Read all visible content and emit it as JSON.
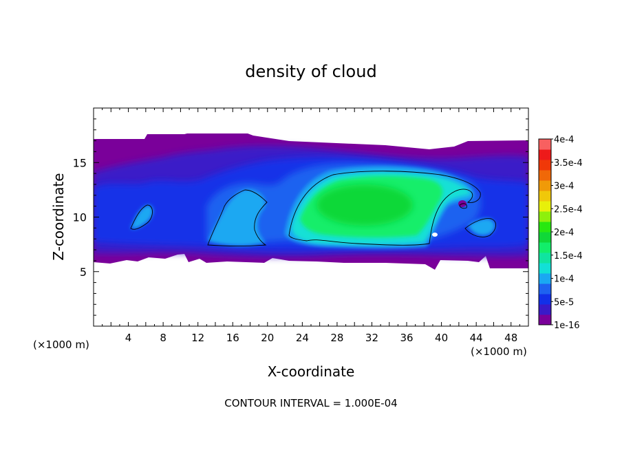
{
  "chart_data": {
    "type": "heatmap",
    "title": "density of cloud",
    "xlabel": "X-coordinate",
    "ylabel": "Z-coordinate",
    "x_unit": "(×1000 m)",
    "z_unit": "(×1000 m)",
    "xlim": [
      0,
      50
    ],
    "ylim": [
      0,
      20
    ],
    "x_ticks": [
      4,
      8,
      12,
      16,
      20,
      24,
      28,
      32,
      36,
      40,
      44,
      48
    ],
    "y_ticks": [
      5,
      10,
      15
    ],
    "footer": "CONTOUR INTERVAL = 1.000E-04",
    "grid": false,
    "colorbar": {
      "placement": "right",
      "labels": [
        "1e-16",
        "5e-5",
        "1e-4",
        "1.5e-4",
        "2e-4",
        "2.5e-4",
        "3e-4",
        "3.5e-4",
        "4e-4"
      ],
      "colors": [
        "#7a009a",
        "#3a1ac8",
        "#1230e8",
        "#1e62f0",
        "#1aa8f2",
        "#12e0d6",
        "#10e4a0",
        "#12ee6a",
        "#10d838",
        "#28e810",
        "#8ef00c",
        "#e8f00a",
        "#f0c80a",
        "#f09a08",
        "#f06808",
        "#f03808",
        "#ee1a1a",
        "#f86060"
      ]
    },
    "cloud_top_km": 17,
    "cloud_base_km": 5.8,
    "core_region": {
      "x_range_km": [
        22.5,
        39
      ],
      "z_range_km": [
        7.5,
        13.8
      ],
      "peak_density": 0.0002
    },
    "contour_levels": [
      0.0001
    ]
  }
}
